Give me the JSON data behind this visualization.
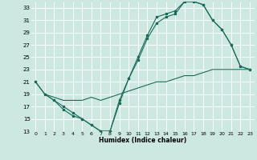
{
  "xlabel": "Humidex (Indice chaleur)",
  "bg_color": "#cce8e0",
  "line_color": "#1a6b5a",
  "grid_color": "#ffffff",
  "xlim": [
    -0.5,
    23.5
  ],
  "ylim": [
    13,
    34
  ],
  "xticks": [
    0,
    1,
    2,
    3,
    4,
    5,
    6,
    7,
    8,
    9,
    10,
    11,
    12,
    13,
    14,
    15,
    16,
    17,
    18,
    19,
    20,
    21,
    22,
    23
  ],
  "yticks": [
    13,
    15,
    17,
    19,
    21,
    23,
    25,
    27,
    29,
    31,
    33
  ],
  "line1_x": [
    0,
    1,
    2,
    3,
    4,
    5,
    6,
    7,
    8,
    9,
    10,
    11,
    12,
    13,
    14,
    15,
    16,
    17,
    18,
    19,
    20,
    21,
    22,
    23
  ],
  "line1_y": [
    21,
    19,
    18,
    17,
    16,
    15,
    14,
    13,
    13,
    17.5,
    21.5,
    25,
    28.5,
    31.5,
    32,
    32.5,
    34,
    34,
    33.5,
    31,
    29.5,
    27,
    23.5,
    23
  ],
  "line2_x": [
    0,
    1,
    2,
    3,
    4,
    5,
    6,
    7,
    8,
    9,
    10,
    11,
    12,
    13,
    14,
    15,
    16,
    17,
    18,
    19,
    20,
    21,
    22,
    23
  ],
  "line2_y": [
    21,
    19,
    18,
    16.5,
    15.5,
    15,
    14,
    13,
    13,
    18,
    21.5,
    24.5,
    28,
    30.5,
    31.5,
    32,
    34,
    34,
    33.5,
    31,
    29.5,
    27,
    23.5,
    23
  ],
  "line3_x": [
    1,
    2,
    3,
    4,
    5,
    6,
    7,
    8,
    9,
    10,
    11,
    12,
    13,
    14,
    15,
    16,
    17,
    18,
    19,
    20,
    21,
    22,
    23
  ],
  "line3_y": [
    19,
    18.5,
    18,
    18,
    18,
    18.5,
    18,
    18.5,
    19,
    19.5,
    20,
    20.5,
    21,
    21,
    21.5,
    22,
    22,
    22.5,
    23,
    23,
    23,
    23,
    23
  ]
}
